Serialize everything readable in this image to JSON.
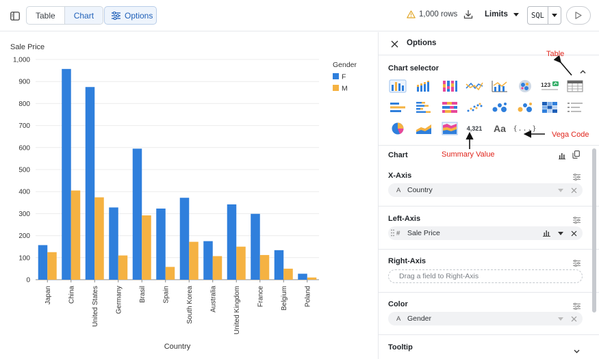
{
  "toolbar": {
    "tab_table": "Table",
    "tab_chart": "Chart",
    "options_label": "Options",
    "rows_label": "1,000 rows",
    "limits_label": "Limits",
    "sql_label": "SQL"
  },
  "panel": {
    "title": "Options",
    "chart_selector_title": "Chart selector",
    "summary_value_icon_text": "4,321",
    "text_icon_text": "Aa",
    "vega_icon_text": "{...}",
    "sections": {
      "chart": {
        "title": "Chart"
      },
      "x_axis": {
        "title": "X-Axis",
        "field_type": "A",
        "field": "Country"
      },
      "left_axis": {
        "title": "Left-Axis",
        "field_type": "#",
        "field": "Sale Price"
      },
      "right_axis": {
        "title": "Right-Axis",
        "placeholder": "Drag a field to Right-Axis"
      },
      "color": {
        "title": "Color",
        "field_type": "A",
        "field": "Gender"
      },
      "tooltip": {
        "title": "Tooltip"
      }
    }
  },
  "annotations": {
    "table": "Table",
    "vega": "Vega Code",
    "summary": "Summary Value"
  },
  "colors": {
    "series_f": "#2f7fdc",
    "series_m": "#f5b242",
    "accent": "#1e5fb8",
    "annotation": "#e0241b"
  },
  "chart_data": {
    "type": "bar",
    "ylabel": "Sale Price",
    "xlabel": "Country",
    "ylim": [
      0,
      1000
    ],
    "yticks": [
      "0",
      "100",
      "200",
      "300",
      "400",
      "500",
      "600",
      "700",
      "800",
      "900",
      "1,000"
    ],
    "categories": [
      "Japan",
      "China",
      "United States",
      "Germany",
      "Brasil",
      "Spain",
      "South Korea",
      "Australia",
      "United Kingdom",
      "France",
      "Belgium",
      "Poland"
    ],
    "legend_title": "Gender",
    "legend_position": "top-right",
    "grid": true,
    "series": [
      {
        "name": "F",
        "values": [
          157,
          957,
          875,
          328,
          595,
          323,
          372,
          175,
          342,
          299,
          134,
          27
        ]
      },
      {
        "name": "M",
        "values": [
          125,
          405,
          374,
          110,
          292,
          58,
          172,
          107,
          150,
          112,
          50,
          10
        ]
      }
    ]
  }
}
